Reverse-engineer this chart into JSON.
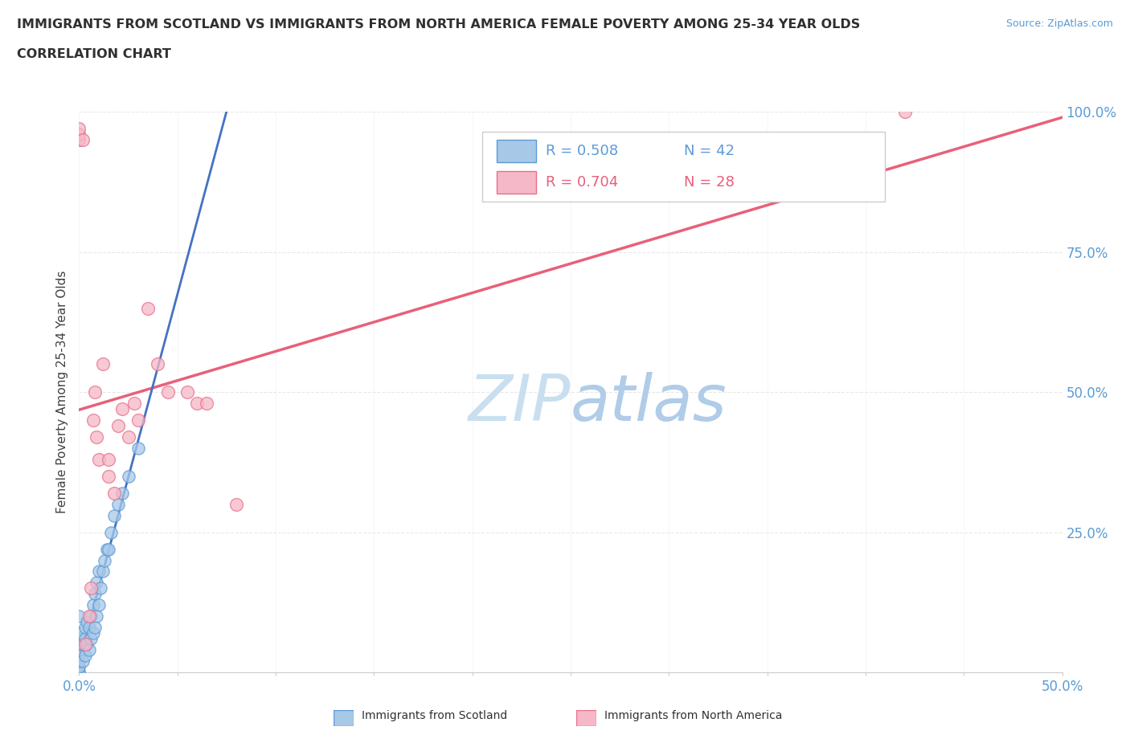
{
  "title_line1": "IMMIGRANTS FROM SCOTLAND VS IMMIGRANTS FROM NORTH AMERICA FEMALE POVERTY AMONG 25-34 YEAR OLDS",
  "title_line2": "CORRELATION CHART",
  "source_text": "Source: ZipAtlas.com",
  "ylabel": "Female Poverty Among 25-34 Year Olds",
  "xlim": [
    0.0,
    0.5
  ],
  "ylim": [
    0.0,
    1.0
  ],
  "xticks": [
    0.0,
    0.05,
    0.1,
    0.15,
    0.2,
    0.25,
    0.3,
    0.35,
    0.4,
    0.45,
    0.5
  ],
  "xticklabels": [
    "0.0%",
    "",
    "",
    "",
    "",
    "",
    "",
    "",
    "",
    "",
    "50.0%"
  ],
  "yticks": [
    0.0,
    0.25,
    0.5,
    0.75,
    1.0
  ],
  "yticklabels": [
    "",
    "25.0%",
    "50.0%",
    "75.0%",
    "100.0%"
  ],
  "legend_r1_label": "R = 0.508",
  "legend_r1_n": "N = 42",
  "legend_r2_label": "R = 0.704",
  "legend_r2_n": "N = 28",
  "color_scotland": "#a8c8e8",
  "color_scotland_edge": "#5b9bd5",
  "color_north_america": "#f5b8c8",
  "color_north_america_edge": "#e8708a",
  "color_scotland_trendline": "#4472c4",
  "color_north_america_trendline": "#e8607a",
  "color_dashed": "#8ab4d8",
  "watermark_zip": "ZIP",
  "watermark_atlas": "atlas",
  "watermark_color_zip": "#c8dff0",
  "watermark_color_atlas": "#b0cce8",
  "grid_color": "#e8e8e8",
  "grid_style": "--",
  "scotland_x": [
    0.0,
    0.0,
    0.0,
    0.0,
    0.0,
    0.0,
    0.0,
    0.0,
    0.0,
    0.0,
    0.0,
    0.0,
    0.002,
    0.002,
    0.003,
    0.003,
    0.003,
    0.004,
    0.004,
    0.005,
    0.005,
    0.006,
    0.006,
    0.007,
    0.007,
    0.008,
    0.008,
    0.009,
    0.009,
    0.01,
    0.01,
    0.011,
    0.012,
    0.013,
    0.014,
    0.015,
    0.016,
    0.018,
    0.02,
    0.022,
    0.025,
    0.03
  ],
  "scotland_y": [
    0.0,
    0.0,
    0.0,
    0.01,
    0.01,
    0.02,
    0.03,
    0.04,
    0.05,
    0.06,
    0.07,
    0.1,
    0.02,
    0.05,
    0.03,
    0.06,
    0.08,
    0.05,
    0.09,
    0.04,
    0.08,
    0.06,
    0.1,
    0.07,
    0.12,
    0.08,
    0.14,
    0.1,
    0.16,
    0.12,
    0.18,
    0.15,
    0.18,
    0.2,
    0.22,
    0.22,
    0.25,
    0.28,
    0.3,
    0.32,
    0.35,
    0.4
  ],
  "north_america_x": [
    0.0,
    0.0,
    0.0,
    0.002,
    0.003,
    0.005,
    0.006,
    0.007,
    0.008,
    0.009,
    0.01,
    0.012,
    0.015,
    0.015,
    0.018,
    0.02,
    0.022,
    0.025,
    0.028,
    0.03,
    0.035,
    0.04,
    0.045,
    0.055,
    0.06,
    0.065,
    0.08,
    0.42
  ],
  "north_america_y": [
    0.95,
    0.96,
    0.97,
    0.95,
    0.05,
    0.1,
    0.15,
    0.45,
    0.5,
    0.42,
    0.38,
    0.55,
    0.35,
    0.38,
    0.32,
    0.44,
    0.47,
    0.42,
    0.48,
    0.45,
    0.65,
    0.55,
    0.5,
    0.5,
    0.48,
    0.48,
    0.3,
    1.0
  ],
  "scotland_trendline_xrange": [
    0.0,
    0.08
  ],
  "north_america_trendline_xrange": [
    0.0,
    0.5
  ]
}
